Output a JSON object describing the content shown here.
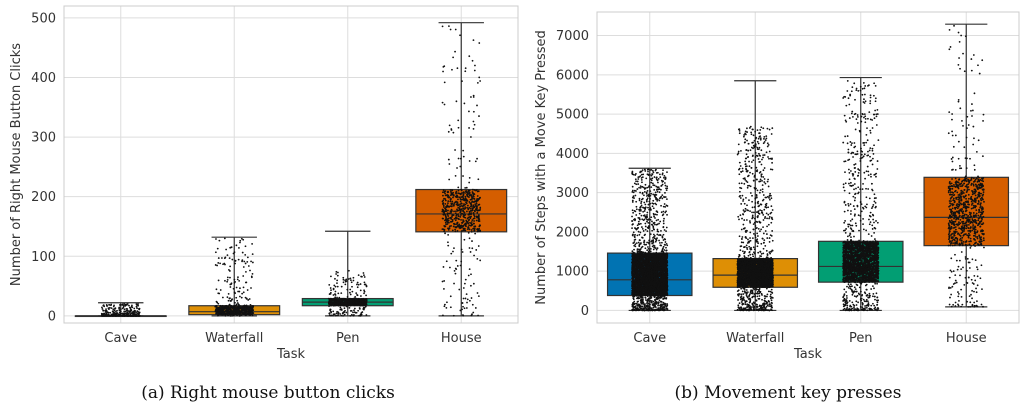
{
  "chart_data": [
    {
      "type": "box",
      "caption": "(a) Right mouse button clicks",
      "xlabel": "Task",
      "ylabel": "Number of Right Mouse Button Clicks",
      "ylim": [
        -12,
        520
      ],
      "yticks": [
        0,
        100,
        200,
        300,
        400,
        500
      ],
      "grid": true,
      "categories": [
        "Cave",
        "Waterfall",
        "Pen",
        "House"
      ],
      "colors": [
        "#0173b2",
        "#de8f05",
        "#029e73",
        "#d55e00"
      ],
      "boxes": [
        {
          "category": "Cave",
          "whislo": 0,
          "q1": 0,
          "median": 0,
          "q3": 0,
          "whishi": 22,
          "points_max": 20
        },
        {
          "category": "Waterfall",
          "whislo": 0,
          "q1": 2,
          "median": 7,
          "q3": 17,
          "whishi": 132,
          "points_max": 130
        },
        {
          "category": "Pen",
          "whislo": 0,
          "q1": 17,
          "median": 23,
          "q3": 29,
          "whishi": 142,
          "points_max": 80
        },
        {
          "category": "House",
          "whislo": 0,
          "q1": 141,
          "median": 171,
          "q3": 212,
          "whishi": 492,
          "points_max": 490
        }
      ]
    },
    {
      "type": "box",
      "caption": "(b) Movement key presses",
      "xlabel": "Task",
      "ylabel": "Number of Steps with a Move Key Pressed",
      "ylim": [
        -320,
        7600
      ],
      "yticks": [
        0,
        1000,
        2000,
        3000,
        4000,
        5000,
        6000,
        7000
      ],
      "grid": true,
      "categories": [
        "Cave",
        "Waterfall",
        "Pen",
        "House"
      ],
      "colors": [
        "#0173b2",
        "#de8f05",
        "#029e73",
        "#d55e00"
      ],
      "boxes": [
        {
          "category": "Cave",
          "whislo": 0,
          "q1": 380,
          "median": 780,
          "q3": 1460,
          "whishi": 3620,
          "points_max": 3600
        },
        {
          "category": "Waterfall",
          "whislo": 0,
          "q1": 590,
          "median": 900,
          "q3": 1320,
          "whishi": 5850,
          "points_max": 4700
        },
        {
          "category": "Pen",
          "whislo": 0,
          "q1": 720,
          "median": 1120,
          "q3": 1760,
          "whishi": 5930,
          "points_max": 5900
        },
        {
          "category": "House",
          "whislo": 90,
          "q1": 1650,
          "median": 2370,
          "q3": 3390,
          "whishi": 7290,
          "points_max": 7250
        }
      ]
    }
  ]
}
